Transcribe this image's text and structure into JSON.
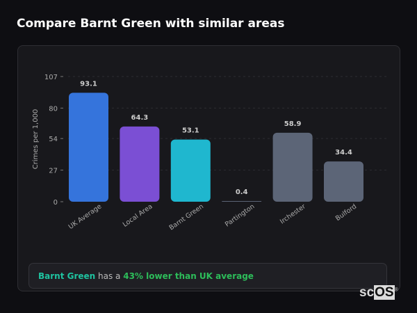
{
  "title": "Compare Barnt Green with similar areas",
  "chart_data": {
    "type": "bar",
    "ylabel": "Crimes per 1,000",
    "ylim": [
      0,
      107
    ],
    "yticks": [
      0,
      27,
      54,
      80,
      107
    ],
    "grid": true,
    "categories": [
      "UK Average",
      "Local Area",
      "Barnt Green",
      "Partington",
      "Irchester",
      "Bulford"
    ],
    "values": [
      93.1,
      64.3,
      53.1,
      0.4,
      58.9,
      34.4
    ],
    "value_labels": [
      "93.1",
      "64.3",
      "53.1",
      "0.4",
      "58.9",
      "34.4"
    ],
    "colors": [
      "#3574dc",
      "#7b4fd4",
      "#1fb7cf",
      "#5c6577",
      "#5c6577",
      "#5c6577"
    ]
  },
  "summary": {
    "area": "Barnt Green",
    "middle": " has a ",
    "comparison": "43% lower than UK average"
  },
  "logo": {
    "text": "scOS"
  }
}
